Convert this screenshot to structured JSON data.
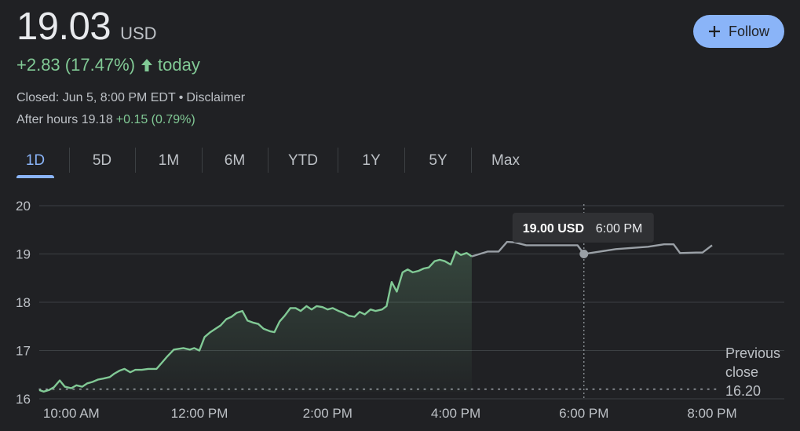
{
  "quote": {
    "price": "19.03",
    "currency": "USD",
    "change": "+2.83 (17.47%)",
    "change_suffix": "today",
    "closed_text": "Closed: Jun 5, 8:00 PM EDT",
    "separator": "•",
    "disclaimer": "Disclaimer",
    "after_hours_label": "After hours 19.18",
    "after_hours_change": "+0.15 (0.79%)"
  },
  "follow_button": {
    "label": "Follow"
  },
  "tabs": [
    "1D",
    "5D",
    "1M",
    "6M",
    "YTD",
    "1Y",
    "5Y",
    "Max"
  ],
  "active_tab": "1D",
  "colors": {
    "accent": "#8ab4f8",
    "positive": "#81c995",
    "after_hours_line": "#9aa0a6",
    "background": "#202124"
  },
  "chart_data": {
    "type": "line",
    "y_ticks": [
      "16",
      "17",
      "18",
      "19",
      "20"
    ],
    "ylim": [
      16,
      20
    ],
    "x_ticks": [
      {
        "label": "10:00 AM",
        "t": 10
      },
      {
        "label": "12:00 PM",
        "t": 12
      },
      {
        "label": "2:00 PM",
        "t": 14
      },
      {
        "label": "4:00 PM",
        "t": 16
      },
      {
        "label": "6:00 PM",
        "t": 18
      },
      {
        "label": "8:00 PM",
        "t": 20
      }
    ],
    "xlim": [
      9.5,
      20
    ],
    "grid": true,
    "previous_close": {
      "value": 16.2,
      "label_lines": [
        "Previous",
        "close",
        "16.20"
      ]
    },
    "tooltip": {
      "price": "19.00 USD",
      "time": "6:00 PM",
      "t": 18,
      "value": 19.0
    },
    "series": [
      {
        "segment": "regular",
        "points": [
          [
            9.5,
            16.18
          ],
          [
            9.57,
            16.15
          ],
          [
            9.65,
            16.18
          ],
          [
            9.73,
            16.24
          ],
          [
            9.82,
            16.38
          ],
          [
            9.9,
            16.25
          ],
          [
            10.0,
            16.22
          ],
          [
            10.08,
            16.28
          ],
          [
            10.17,
            16.25
          ],
          [
            10.25,
            16.32
          ],
          [
            10.33,
            16.35
          ],
          [
            10.42,
            16.4
          ],
          [
            10.5,
            16.42
          ],
          [
            10.6,
            16.45
          ],
          [
            10.67,
            16.52
          ],
          [
            10.75,
            16.58
          ],
          [
            10.83,
            16.62
          ],
          [
            10.92,
            16.55
          ],
          [
            11.0,
            16.6
          ],
          [
            11.1,
            16.6
          ],
          [
            11.2,
            16.62
          ],
          [
            11.33,
            16.62
          ],
          [
            11.5,
            16.88
          ],
          [
            11.6,
            17.02
          ],
          [
            11.75,
            17.05
          ],
          [
            11.85,
            17.02
          ],
          [
            11.92,
            17.05
          ],
          [
            12.0,
            17.0
          ],
          [
            12.08,
            17.28
          ],
          [
            12.17,
            17.38
          ],
          [
            12.25,
            17.45
          ],
          [
            12.33,
            17.52
          ],
          [
            12.42,
            17.65
          ],
          [
            12.5,
            17.7
          ],
          [
            12.58,
            17.78
          ],
          [
            12.67,
            17.82
          ],
          [
            12.75,
            17.62
          ],
          [
            12.83,
            17.58
          ],
          [
            12.92,
            17.55
          ],
          [
            13.0,
            17.45
          ],
          [
            13.1,
            17.4
          ],
          [
            13.17,
            17.38
          ],
          [
            13.25,
            17.6
          ],
          [
            13.33,
            17.72
          ],
          [
            13.42,
            17.88
          ],
          [
            13.5,
            17.88
          ],
          [
            13.58,
            17.82
          ],
          [
            13.67,
            17.92
          ],
          [
            13.75,
            17.85
          ],
          [
            13.83,
            17.92
          ],
          [
            13.92,
            17.9
          ],
          [
            14.0,
            17.85
          ],
          [
            14.08,
            17.88
          ],
          [
            14.17,
            17.82
          ],
          [
            14.25,
            17.78
          ],
          [
            14.33,
            17.72
          ],
          [
            14.42,
            17.7
          ],
          [
            14.5,
            17.8
          ],
          [
            14.58,
            17.75
          ],
          [
            14.67,
            17.85
          ],
          [
            14.75,
            17.82
          ],
          [
            14.85,
            17.85
          ],
          [
            14.92,
            17.92
          ],
          [
            15.0,
            18.42
          ],
          [
            15.08,
            18.22
          ],
          [
            15.17,
            18.62
          ],
          [
            15.25,
            18.68
          ],
          [
            15.33,
            18.62
          ],
          [
            15.42,
            18.65
          ],
          [
            15.5,
            18.7
          ],
          [
            15.58,
            18.72
          ],
          [
            15.67,
            18.85
          ],
          [
            15.75,
            18.88
          ],
          [
            15.83,
            18.85
          ],
          [
            15.92,
            18.78
          ],
          [
            16.0,
            19.05
          ],
          [
            16.08,
            18.98
          ],
          [
            16.17,
            19.02
          ],
          [
            16.25,
            18.95
          ]
        ]
      },
      {
        "segment": "after_hours",
        "points": [
          [
            16.25,
            18.95
          ],
          [
            16.5,
            19.05
          ],
          [
            16.67,
            19.05
          ],
          [
            16.8,
            19.25
          ],
          [
            16.92,
            19.24
          ],
          [
            17.1,
            19.18
          ],
          [
            17.4,
            19.18
          ],
          [
            17.6,
            19.18
          ],
          [
            17.9,
            19.18
          ],
          [
            18.0,
            19.0
          ],
          [
            18.5,
            19.1
          ],
          [
            19.0,
            19.15
          ],
          [
            19.25,
            19.2
          ],
          [
            19.4,
            19.2
          ],
          [
            19.5,
            19.02
          ],
          [
            19.75,
            19.03
          ],
          [
            19.85,
            19.03
          ],
          [
            20.0,
            19.18
          ]
        ]
      }
    ]
  }
}
